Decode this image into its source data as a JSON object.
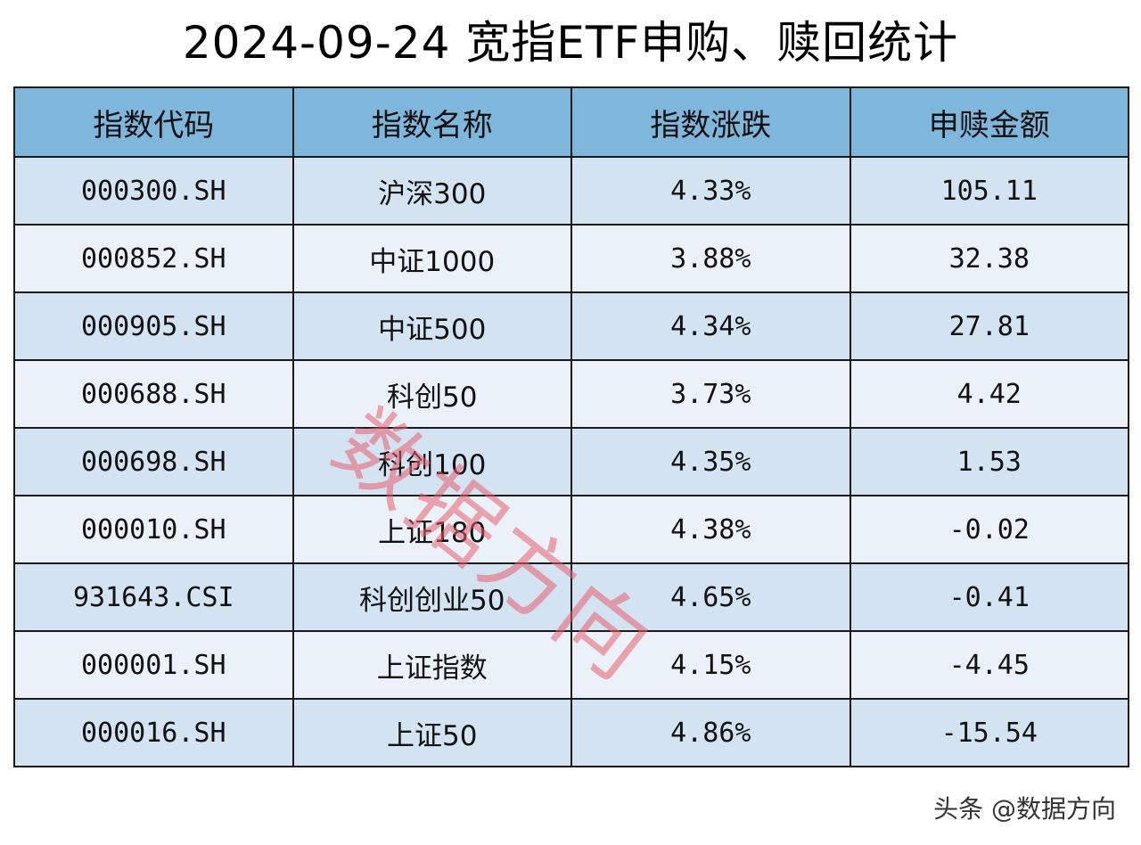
{
  "title": "2024-09-24 宽指ETF申购、赎回统计",
  "table": {
    "headers": [
      "指数代码",
      "指数名称",
      "指数涨跌",
      "申赎金额"
    ],
    "rows": [
      [
        "000300.SH",
        "沪深300",
        "4.33%",
        "105.11"
      ],
      [
        "000852.SH",
        "中证1000",
        "3.88%",
        "32.38"
      ],
      [
        "000905.SH",
        "中证500",
        "4.34%",
        "27.81"
      ],
      [
        "000688.SH",
        "科创50",
        "3.73%",
        "4.42"
      ],
      [
        "000698.SH",
        "科创100",
        "4.35%",
        "1.53"
      ],
      [
        "000010.SH",
        "上证180",
        "4.38%",
        "-0.02"
      ],
      [
        "931643.CSI",
        "科创创业50",
        "4.65%",
        "-0.41"
      ],
      [
        "000001.SH",
        "上证指数",
        "4.15%",
        "-4.45"
      ],
      [
        "000016.SH",
        "上证50",
        "4.86%",
        "-15.54"
      ]
    ]
  },
  "watermark": "数据方向",
  "footer": "头条 @数据方向",
  "colors": {
    "header_bg": "#7eb6dc",
    "row_odd_bg": "#d3e3f2",
    "row_even_bg": "#eaf1f9",
    "watermark": "#e85f6e"
  }
}
